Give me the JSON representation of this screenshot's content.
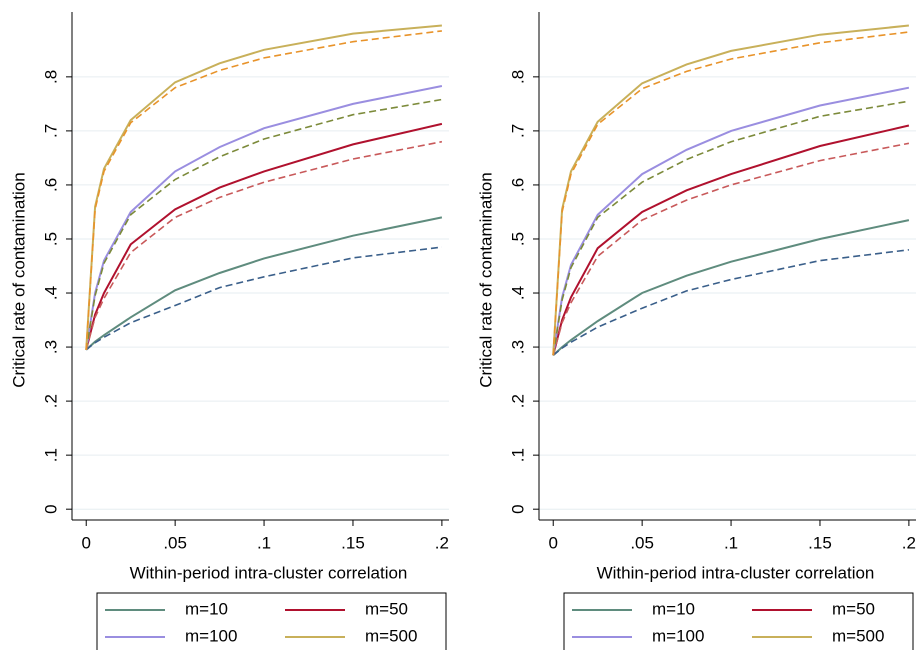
{
  "chart_data": [
    {
      "type": "line",
      "xlabel": "Within-period intra-cluster correlation",
      "ylabel": "Critical rate of contamination",
      "x": [
        0,
        0.005,
        0.01,
        0.025,
        0.05,
        0.075,
        0.1,
        0.15,
        0.2
      ],
      "xlim": [
        -0.008,
        0.204
      ],
      "ylim": [
        -0.02,
        0.92
      ],
      "xticks": [
        0,
        {
          "value": 0.05,
          "label": ".05"
        },
        {
          "value": 0.1,
          "label": ".1"
        },
        {
          "value": 0.15,
          "label": ".15"
        },
        {
          "value": 0.2,
          "label": ".2"
        }
      ],
      "yticks": [
        0,
        {
          "value": 0.1,
          "label": ".1"
        },
        {
          "value": 0.2,
          "label": ".2"
        },
        {
          "value": 0.3,
          "label": ".3"
        },
        {
          "value": 0.4,
          "label": ".4"
        },
        {
          "value": 0.5,
          "label": ".5"
        },
        {
          "value": 0.6,
          "label": ".6"
        },
        {
          "value": 0.7,
          "label": ".7"
        },
        {
          "value": 0.8,
          "label": ".8"
        }
      ],
      "grid": true,
      "legend": "bottom",
      "series": [
        {
          "name": "m=10",
          "color": "#5f8c7e",
          "values": [
            0.295,
            0.31,
            0.322,
            0.355,
            0.405,
            0.437,
            0.464,
            0.506,
            0.54
          ]
        },
        {
          "color": "#3a5f8a",
          "dashed": true,
          "values": [
            0.295,
            0.308,
            0.318,
            0.345,
            0.377,
            0.41,
            0.43,
            0.465,
            0.485
          ]
        },
        {
          "name": "m=50",
          "color": "#b0112e",
          "values": [
            0.295,
            0.36,
            0.4,
            0.49,
            0.555,
            0.595,
            0.625,
            0.675,
            0.713
          ]
        },
        {
          "color": "#c8595a",
          "dashed": true,
          "values": [
            0.295,
            0.355,
            0.39,
            0.475,
            0.54,
            0.577,
            0.605,
            0.648,
            0.68
          ]
        },
        {
          "name": "m=100",
          "color": "#9a8ee0",
          "values": [
            0.295,
            0.4,
            0.46,
            0.55,
            0.625,
            0.67,
            0.705,
            0.75,
            0.783
          ]
        },
        {
          "color": "#7c8a3a",
          "dashed": true,
          "values": [
            0.295,
            0.395,
            0.455,
            0.545,
            0.61,
            0.652,
            0.685,
            0.73,
            0.758
          ]
        },
        {
          "name": "m=500",
          "color": "#c8b05a",
          "values": [
            0.295,
            0.56,
            0.63,
            0.72,
            0.79,
            0.825,
            0.85,
            0.88,
            0.895
          ]
        },
        {
          "color": "#e8932a",
          "dashed": true,
          "values": [
            0.295,
            0.555,
            0.625,
            0.715,
            0.78,
            0.812,
            0.835,
            0.865,
            0.885
          ]
        }
      ]
    },
    {
      "type": "line",
      "xlabel": "Within-period intra-cluster correlation",
      "ylabel": "Critical rate of contamination",
      "x": [
        0,
        0.005,
        0.01,
        0.025,
        0.05,
        0.075,
        0.1,
        0.15,
        0.2
      ],
      "xlim": [
        -0.008,
        0.204
      ],
      "ylim": [
        -0.02,
        0.92
      ],
      "xticks": [
        0,
        {
          "value": 0.05,
          "label": ".05"
        },
        {
          "value": 0.1,
          "label": ".1"
        },
        {
          "value": 0.15,
          "label": ".15"
        },
        {
          "value": 0.2,
          "label": ".2"
        }
      ],
      "yticks": [
        0,
        {
          "value": 0.1,
          "label": ".1"
        },
        {
          "value": 0.2,
          "label": ".2"
        },
        {
          "value": 0.3,
          "label": ".3"
        },
        {
          "value": 0.4,
          "label": ".4"
        },
        {
          "value": 0.5,
          "label": ".5"
        },
        {
          "value": 0.6,
          "label": ".6"
        },
        {
          "value": 0.7,
          "label": ".7"
        },
        {
          "value": 0.8,
          "label": ".8"
        }
      ],
      "grid": true,
      "legend": "bottom",
      "series": [
        {
          "name": "m=10",
          "color": "#5f8c7e",
          "values": [
            0.285,
            0.3,
            0.313,
            0.348,
            0.4,
            0.432,
            0.458,
            0.5,
            0.535
          ]
        },
        {
          "color": "#3a5f8a",
          "dashed": true,
          "values": [
            0.285,
            0.298,
            0.309,
            0.337,
            0.372,
            0.404,
            0.425,
            0.46,
            0.48
          ]
        },
        {
          "name": "m=50",
          "color": "#b0112e",
          "values": [
            0.285,
            0.35,
            0.392,
            0.483,
            0.55,
            0.59,
            0.62,
            0.672,
            0.71
          ]
        },
        {
          "color": "#c8595a",
          "dashed": true,
          "values": [
            0.285,
            0.345,
            0.382,
            0.468,
            0.535,
            0.572,
            0.6,
            0.645,
            0.677
          ]
        },
        {
          "name": "m=100",
          "color": "#9a8ee0",
          "values": [
            0.285,
            0.392,
            0.452,
            0.545,
            0.62,
            0.665,
            0.7,
            0.747,
            0.78
          ]
        },
        {
          "color": "#7c8a3a",
          "dashed": true,
          "values": [
            0.285,
            0.387,
            0.447,
            0.54,
            0.605,
            0.647,
            0.68,
            0.727,
            0.755
          ]
        },
        {
          "name": "m=500",
          "color": "#c8b05a",
          "values": [
            0.285,
            0.555,
            0.625,
            0.717,
            0.788,
            0.823,
            0.848,
            0.878,
            0.895
          ]
        },
        {
          "color": "#e8932a",
          "dashed": true,
          "values": [
            0.285,
            0.55,
            0.62,
            0.712,
            0.778,
            0.81,
            0.833,
            0.863,
            0.883
          ]
        }
      ]
    }
  ]
}
